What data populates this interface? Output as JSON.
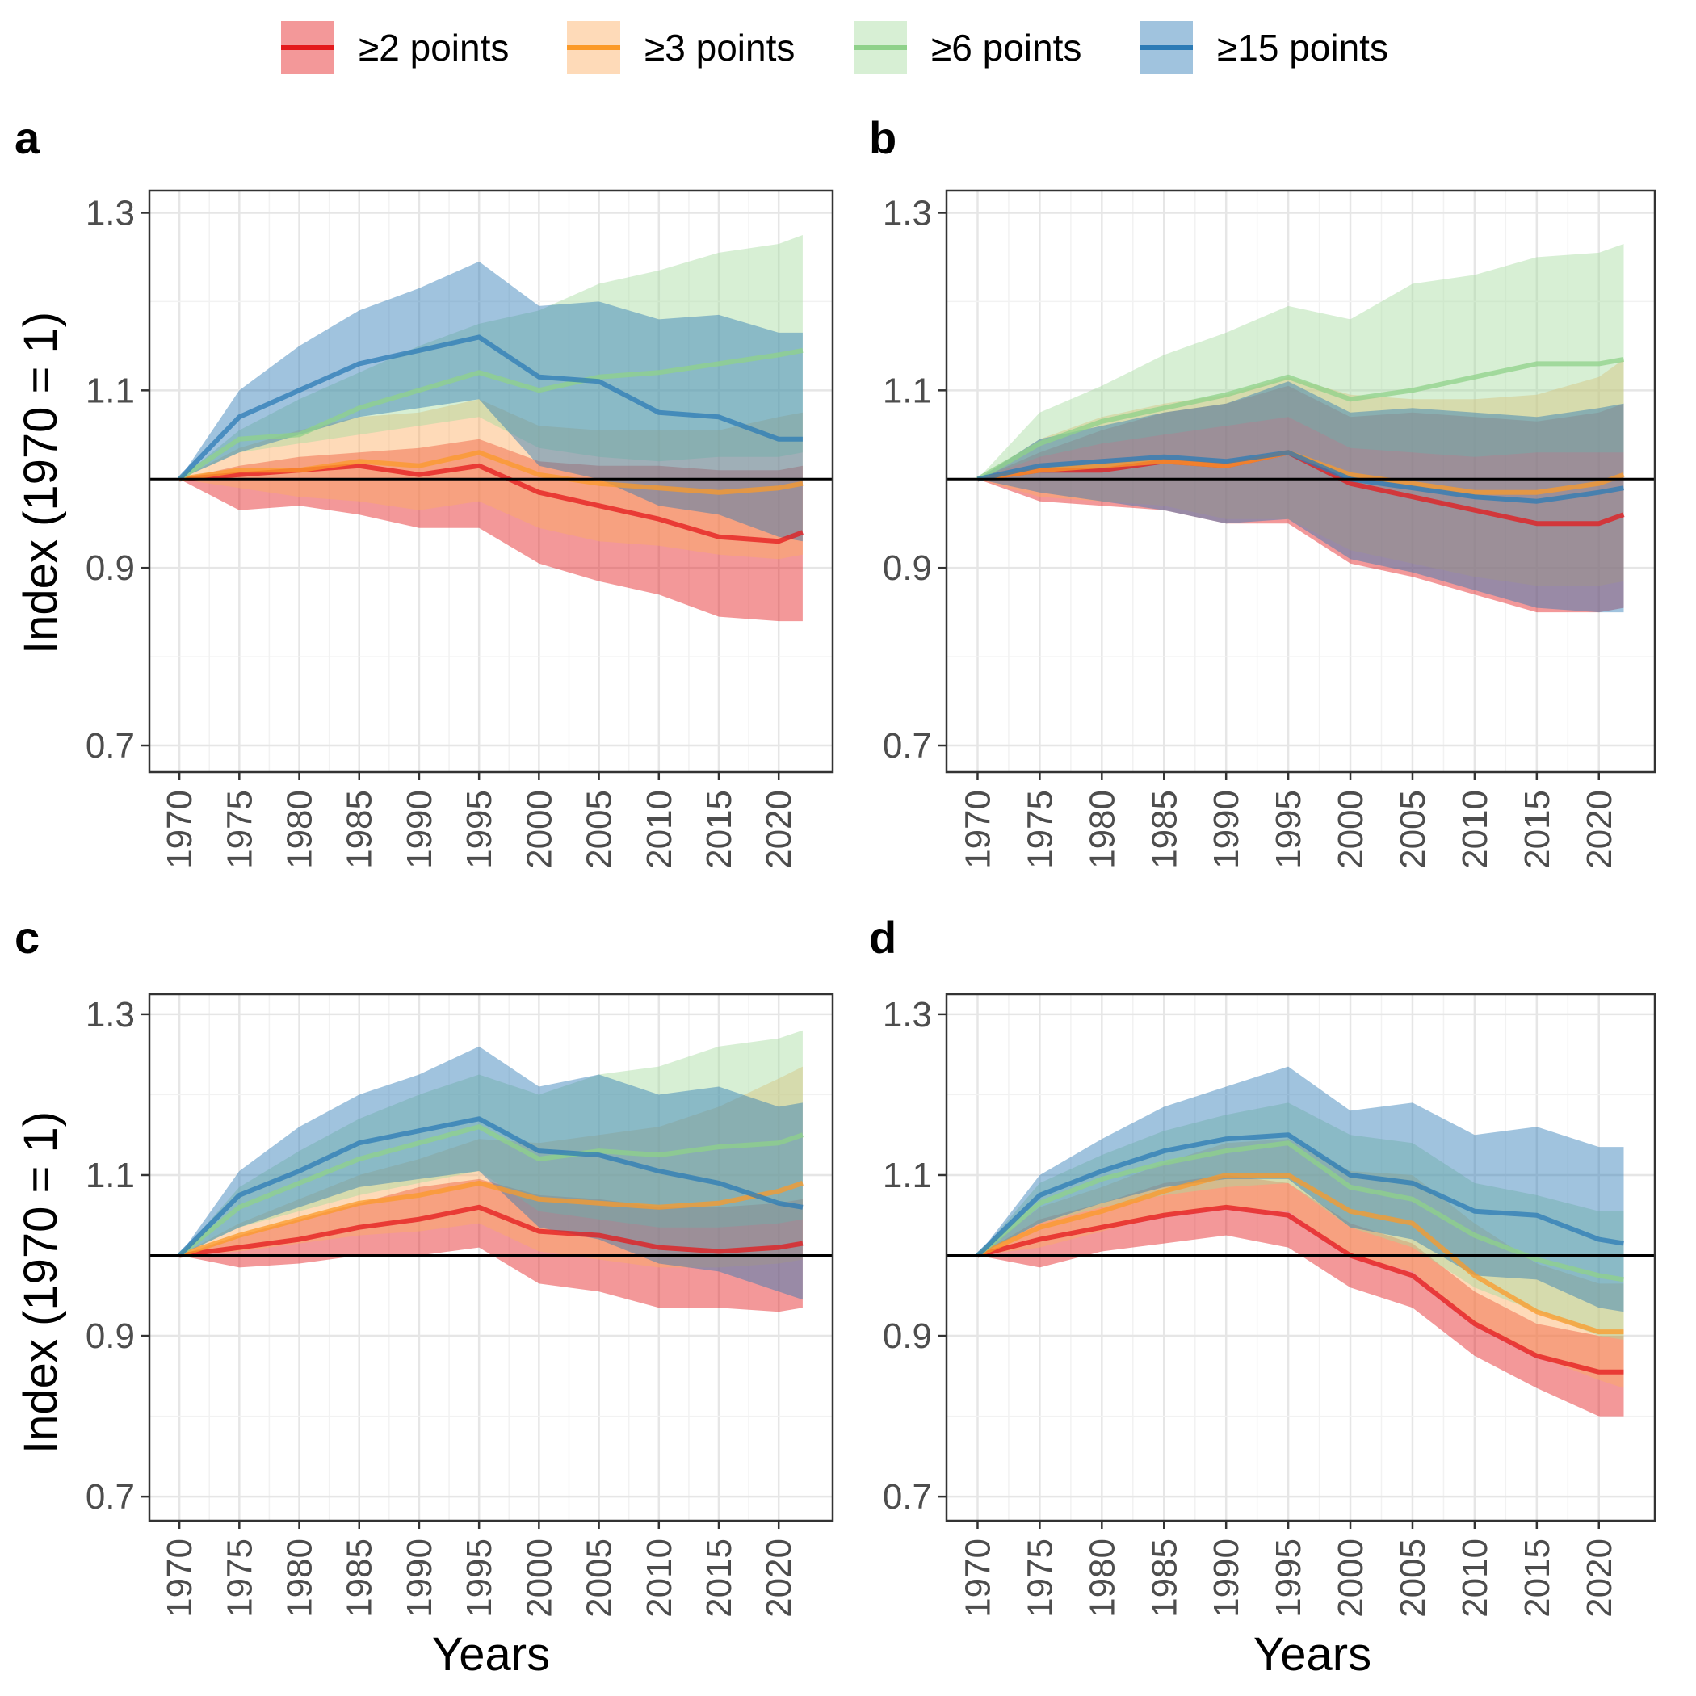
{
  "legend": {
    "items": [
      {
        "label": "≥2 points",
        "line": "#e41a1c",
        "fill": "#e41a1c"
      },
      {
        "label": "≥3 points",
        "line": "#fb9a29",
        "fill": "#fdae61"
      },
      {
        "label": "≥6 points",
        "line": "#8fd18a",
        "fill": "#a6dba0"
      },
      {
        "label": "≥15 points",
        "line": "#2c7bb6",
        "fill": "#2c7bb6"
      }
    ]
  },
  "axes": {
    "ylabel": "Index (1970 = 1)",
    "xlabel": "Years"
  },
  "chart_data": [
    {
      "type": "area",
      "panel": "a",
      "x_range": [
        1970,
        2022
      ],
      "ylim": [
        0.67,
        1.325
      ],
      "y_ticks": [
        0.7,
        0.9,
        1.1,
        1.3
      ],
      "x_ticks": [
        1970,
        1975,
        1980,
        1985,
        1990,
        1995,
        2000,
        2005,
        2010,
        2015,
        2020
      ],
      "reference_line": 1.0,
      "grid": true,
      "series": [
        {
          "name": "≥2 points",
          "x": [
            1970,
            1975,
            1980,
            1985,
            1990,
            1995,
            2000,
            2005,
            2010,
            2015,
            2020,
            2022
          ],
          "mean": [
            1.0,
            1.005,
            1.01,
            1.015,
            1.005,
            1.015,
            0.985,
            0.97,
            0.955,
            0.935,
            0.93,
            0.94
          ],
          "lower": [
            1.0,
            0.965,
            0.97,
            0.96,
            0.945,
            0.945,
            0.905,
            0.885,
            0.87,
            0.845,
            0.84,
            0.84
          ],
          "upper": [
            1.0,
            1.015,
            1.025,
            1.03,
            1.035,
            1.045,
            1.02,
            1.015,
            1.015,
            1.01,
            1.01,
            1.015
          ]
        },
        {
          "name": "≥3 points",
          "x": [
            1970,
            1975,
            1980,
            1985,
            1990,
            1995,
            2000,
            2005,
            2010,
            2015,
            2020,
            2022
          ],
          "mean": [
            1.0,
            1.01,
            1.01,
            1.02,
            1.015,
            1.03,
            1.005,
            0.995,
            0.99,
            0.985,
            0.99,
            0.995
          ],
          "lower": [
            1.0,
            0.99,
            0.98,
            0.975,
            0.965,
            0.975,
            0.945,
            0.93,
            0.925,
            0.915,
            0.91,
            0.915
          ],
          "upper": [
            1.0,
            1.035,
            1.055,
            1.07,
            1.075,
            1.09,
            1.06,
            1.055,
            1.055,
            1.055,
            1.07,
            1.075
          ]
        },
        {
          "name": "≥6 points",
          "x": [
            1970,
            1975,
            1980,
            1985,
            1990,
            1995,
            2000,
            2005,
            2010,
            2015,
            2020,
            2022
          ],
          "mean": [
            1.0,
            1.045,
            1.05,
            1.08,
            1.1,
            1.12,
            1.1,
            1.115,
            1.12,
            1.13,
            1.14,
            1.145
          ],
          "lower": [
            1.0,
            1.03,
            1.04,
            1.05,
            1.06,
            1.07,
            1.035,
            1.025,
            1.02,
            1.025,
            1.025,
            1.03
          ],
          "upper": [
            1.0,
            1.055,
            1.09,
            1.12,
            1.15,
            1.175,
            1.19,
            1.22,
            1.235,
            1.255,
            1.265,
            1.275
          ]
        },
        {
          "name": "≥15 points",
          "x": [
            1970,
            1975,
            1980,
            1985,
            1990,
            1995,
            2000,
            2005,
            2010,
            2015,
            2020,
            2022
          ],
          "mean": [
            1.0,
            1.07,
            1.1,
            1.13,
            1.145,
            1.16,
            1.115,
            1.11,
            1.075,
            1.07,
            1.045,
            1.045
          ],
          "lower": [
            1.0,
            1.03,
            1.05,
            1.07,
            1.08,
            1.09,
            1.015,
            1.0,
            0.97,
            0.96,
            0.935,
            0.93
          ],
          "upper": [
            1.0,
            1.1,
            1.15,
            1.19,
            1.215,
            1.245,
            1.195,
            1.2,
            1.18,
            1.185,
            1.165,
            1.165
          ]
        }
      ]
    },
    {
      "type": "area",
      "panel": "b",
      "x_range": [
        1970,
        2022
      ],
      "ylim": [
        0.67,
        1.325
      ],
      "y_ticks": [
        0.7,
        0.9,
        1.1,
        1.3
      ],
      "x_ticks": [
        1970,
        1975,
        1980,
        1985,
        1990,
        1995,
        2000,
        2005,
        2010,
        2015,
        2020
      ],
      "reference_line": 1.0,
      "grid": true,
      "series": [
        {
          "name": "≥2 points",
          "x": [
            1970,
            1975,
            1980,
            1985,
            1990,
            1995,
            2000,
            2005,
            2010,
            2015,
            2020,
            2022
          ],
          "mean": [
            1.0,
            1.01,
            1.01,
            1.02,
            1.015,
            1.03,
            0.995,
            0.98,
            0.965,
            0.95,
            0.95,
            0.96
          ],
          "lower": [
            1.0,
            0.975,
            0.97,
            0.965,
            0.95,
            0.95,
            0.905,
            0.89,
            0.87,
            0.85,
            0.85,
            0.855
          ],
          "upper": [
            1.0,
            1.03,
            1.055,
            1.075,
            1.085,
            1.105,
            1.07,
            1.075,
            1.07,
            1.065,
            1.075,
            1.085
          ]
        },
        {
          "name": "≥3 points",
          "x": [
            1970,
            1975,
            1980,
            1985,
            1990,
            1995,
            2000,
            2005,
            2010,
            2015,
            2020,
            2022
          ],
          "mean": [
            1.0,
            1.01,
            1.015,
            1.02,
            1.015,
            1.03,
            1.005,
            0.995,
            0.985,
            0.985,
            0.995,
            1.005
          ],
          "lower": [
            1.0,
            0.98,
            0.975,
            0.97,
            0.955,
            0.955,
            0.92,
            0.905,
            0.89,
            0.88,
            0.88,
            0.885
          ],
          "upper": [
            1.0,
            1.045,
            1.07,
            1.085,
            1.095,
            1.115,
            1.095,
            1.09,
            1.09,
            1.095,
            1.115,
            1.135
          ]
        },
        {
          "name": "≥6 points",
          "x": [
            1970,
            1975,
            1980,
            1985,
            1990,
            1995,
            2000,
            2005,
            2010,
            2015,
            2020,
            2022
          ],
          "mean": [
            1.0,
            1.04,
            1.065,
            1.08,
            1.095,
            1.115,
            1.09,
            1.1,
            1.115,
            1.13,
            1.13,
            1.135
          ],
          "lower": [
            1.0,
            1.025,
            1.04,
            1.05,
            1.06,
            1.07,
            1.035,
            1.03,
            1.025,
            1.03,
            1.03,
            1.03
          ],
          "upper": [
            1.0,
            1.075,
            1.105,
            1.14,
            1.165,
            1.195,
            1.18,
            1.22,
            1.23,
            1.25,
            1.255,
            1.265
          ]
        },
        {
          "name": "≥15 points",
          "x": [
            1970,
            1975,
            1980,
            1985,
            1990,
            1995,
            2000,
            2005,
            2010,
            2015,
            2020,
            2022
          ],
          "mean": [
            1.0,
            1.015,
            1.02,
            1.025,
            1.02,
            1.03,
            1.0,
            0.99,
            0.98,
            0.975,
            0.985,
            0.99
          ],
          "lower": [
            1.0,
            0.985,
            0.975,
            0.965,
            0.95,
            0.955,
            0.91,
            0.895,
            0.875,
            0.855,
            0.85,
            0.85
          ],
          "upper": [
            1.0,
            1.045,
            1.06,
            1.075,
            1.085,
            1.11,
            1.075,
            1.08,
            1.075,
            1.07,
            1.08,
            1.085
          ]
        }
      ]
    },
    {
      "type": "area",
      "panel": "c",
      "x_range": [
        1970,
        2022
      ],
      "ylim": [
        0.67,
        1.325
      ],
      "y_ticks": [
        0.7,
        0.9,
        1.1,
        1.3
      ],
      "x_ticks": [
        1970,
        1975,
        1980,
        1985,
        1990,
        1995,
        2000,
        2005,
        2010,
        2015,
        2020
      ],
      "reference_line": 1.0,
      "grid": true,
      "series": [
        {
          "name": "≥2 points",
          "x": [
            1970,
            1975,
            1980,
            1985,
            1990,
            1995,
            2000,
            2005,
            2010,
            2015,
            2020,
            2022
          ],
          "mean": [
            1.0,
            1.01,
            1.02,
            1.035,
            1.045,
            1.06,
            1.03,
            1.025,
            1.01,
            1.005,
            1.01,
            1.015
          ],
          "lower": [
            1.0,
            0.985,
            0.99,
            1.0,
            1.0,
            1.01,
            0.965,
            0.955,
            0.935,
            0.935,
            0.93,
            0.935
          ],
          "upper": [
            1.0,
            1.025,
            1.045,
            1.065,
            1.085,
            1.095,
            1.075,
            1.07,
            1.06,
            1.06,
            1.065,
            1.07
          ]
        },
        {
          "name": "≥3 points",
          "x": [
            1970,
            1975,
            1980,
            1985,
            1990,
            1995,
            2000,
            2005,
            2010,
            2015,
            2020,
            2022
          ],
          "mean": [
            1.0,
            1.025,
            1.045,
            1.065,
            1.075,
            1.09,
            1.07,
            1.065,
            1.06,
            1.065,
            1.08,
            1.09
          ],
          "lower": [
            1.0,
            1.005,
            1.015,
            1.025,
            1.03,
            1.04,
            1.005,
            0.995,
            0.985,
            0.985,
            0.99,
            0.995
          ],
          "upper": [
            1.0,
            1.04,
            1.07,
            1.1,
            1.12,
            1.145,
            1.14,
            1.15,
            1.16,
            1.185,
            1.22,
            1.235
          ]
        },
        {
          "name": "≥6 points",
          "x": [
            1970,
            1975,
            1980,
            1985,
            1990,
            1995,
            2000,
            2005,
            2010,
            2015,
            2020,
            2022
          ],
          "mean": [
            1.0,
            1.06,
            1.09,
            1.12,
            1.14,
            1.16,
            1.12,
            1.13,
            1.125,
            1.135,
            1.14,
            1.15
          ],
          "lower": [
            1.0,
            1.035,
            1.055,
            1.075,
            1.09,
            1.105,
            1.055,
            1.045,
            1.035,
            1.035,
            1.04,
            1.045
          ],
          "upper": [
            1.0,
            1.085,
            1.13,
            1.17,
            1.2,
            1.225,
            1.2,
            1.225,
            1.235,
            1.26,
            1.27,
            1.28
          ]
        },
        {
          "name": "≥15 points",
          "x": [
            1970,
            1975,
            1980,
            1985,
            1990,
            1995,
            2000,
            2005,
            2010,
            2015,
            2020,
            2022
          ],
          "mean": [
            1.0,
            1.075,
            1.105,
            1.14,
            1.155,
            1.17,
            1.13,
            1.125,
            1.105,
            1.09,
            1.065,
            1.06
          ],
          "lower": [
            1.0,
            1.035,
            1.06,
            1.085,
            1.095,
            1.105,
            1.035,
            1.02,
            0.99,
            0.98,
            0.955,
            0.945
          ],
          "upper": [
            1.0,
            1.105,
            1.16,
            1.2,
            1.225,
            1.26,
            1.21,
            1.225,
            1.2,
            1.21,
            1.185,
            1.19
          ]
        }
      ]
    },
    {
      "type": "area",
      "panel": "d",
      "x_range": [
        1970,
        2022
      ],
      "ylim": [
        0.67,
        1.325
      ],
      "y_ticks": [
        0.7,
        0.9,
        1.1,
        1.3
      ],
      "x_ticks": [
        1970,
        1975,
        1980,
        1985,
        1990,
        1995,
        2000,
        2005,
        2010,
        2015,
        2020
      ],
      "reference_line": 1.0,
      "grid": true,
      "series": [
        {
          "name": "≥2 points",
          "x": [
            1970,
            1975,
            1980,
            1985,
            1990,
            1995,
            2000,
            2005,
            2010,
            2015,
            2020,
            2022
          ],
          "mean": [
            1.0,
            1.02,
            1.035,
            1.05,
            1.06,
            1.05,
            1.0,
            0.975,
            0.915,
            0.875,
            0.855,
            0.855
          ],
          "lower": [
            1.0,
            0.985,
            1.005,
            1.015,
            1.025,
            1.01,
            0.96,
            0.935,
            0.875,
            0.835,
            0.8,
            0.8
          ],
          "upper": [
            1.0,
            1.045,
            1.065,
            1.09,
            1.1,
            1.09,
            1.04,
            1.015,
            0.955,
            0.915,
            0.9,
            0.9
          ]
        },
        {
          "name": "≥3 points",
          "x": [
            1970,
            1975,
            1980,
            1985,
            1990,
            1995,
            2000,
            2005,
            2010,
            2015,
            2020,
            2022
          ],
          "mean": [
            1.0,
            1.035,
            1.055,
            1.08,
            1.1,
            1.1,
            1.055,
            1.04,
            0.975,
            0.93,
            0.905,
            0.905
          ],
          "lower": [
            1.0,
            1.01,
            1.03,
            1.05,
            1.06,
            1.055,
            1.0,
            0.98,
            0.915,
            0.875,
            0.845,
            0.835
          ],
          "upper": [
            1.0,
            1.06,
            1.085,
            1.115,
            1.14,
            1.145,
            1.105,
            1.1,
            1.04,
            0.99,
            0.965,
            0.965
          ]
        },
        {
          "name": "≥6 points",
          "x": [
            1970,
            1975,
            1980,
            1985,
            1990,
            1995,
            2000,
            2005,
            2010,
            2015,
            2020,
            2022
          ],
          "mean": [
            1.0,
            1.065,
            1.095,
            1.115,
            1.13,
            1.14,
            1.085,
            1.07,
            1.025,
            0.995,
            0.975,
            0.97
          ],
          "lower": [
            1.0,
            1.04,
            1.06,
            1.075,
            1.085,
            1.09,
            1.035,
            1.01,
            0.96,
            0.93,
            0.9,
            0.895
          ],
          "upper": [
            1.0,
            1.09,
            1.125,
            1.155,
            1.175,
            1.19,
            1.15,
            1.14,
            1.09,
            1.075,
            1.055,
            1.055
          ]
        },
        {
          "name": "≥15 points",
          "x": [
            1970,
            1975,
            1980,
            1985,
            1990,
            1995,
            2000,
            2005,
            2010,
            2015,
            2020,
            2022
          ],
          "mean": [
            1.0,
            1.075,
            1.105,
            1.13,
            1.145,
            1.15,
            1.1,
            1.09,
            1.055,
            1.05,
            1.02,
            1.015
          ],
          "lower": [
            1.0,
            1.04,
            1.065,
            1.085,
            1.095,
            1.095,
            1.035,
            1.02,
            0.975,
            0.97,
            0.935,
            0.93
          ],
          "upper": [
            1.0,
            1.1,
            1.145,
            1.185,
            1.21,
            1.235,
            1.18,
            1.19,
            1.15,
            1.16,
            1.135,
            1.135
          ]
        }
      ]
    }
  ]
}
